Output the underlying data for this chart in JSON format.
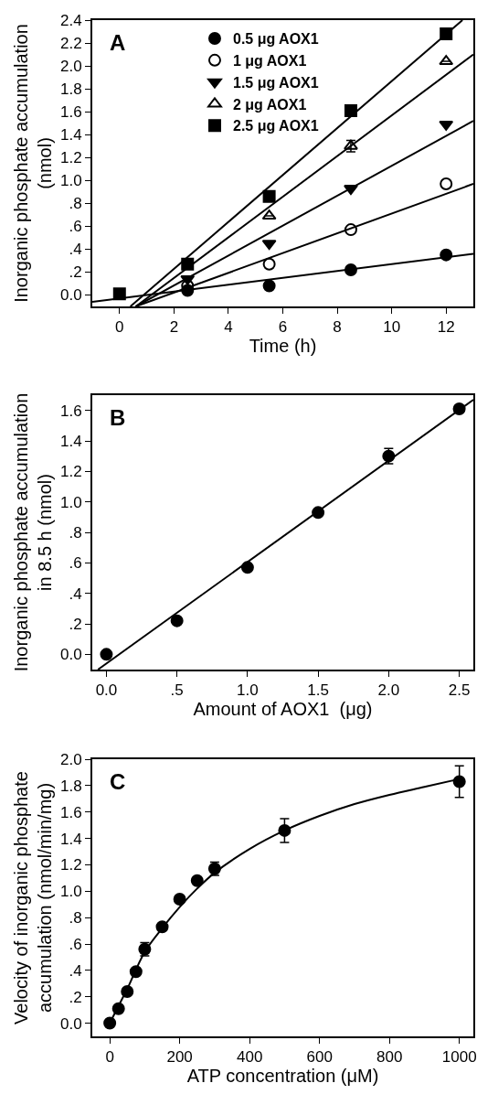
{
  "chart_data": [
    {
      "type": "scatter",
      "xlabel": "Time (h)",
      "ylabel": "Inorganic phosphate accumulation\n(nmol)",
      "annotations": [
        "A"
      ],
      "xlim": [
        -1,
        13
      ],
      "ylim": [
        -0.1,
        2.4
      ],
      "xticks": [
        0,
        2,
        4,
        6,
        8,
        10,
        12
      ],
      "yticks": [
        {
          "value": 0,
          "label": "0.0"
        },
        {
          "value": 0.2,
          "label": ".2"
        },
        {
          "value": 0.4,
          "label": ".4"
        },
        {
          "value": 0.6,
          "label": ".6"
        },
        {
          "value": 0.8,
          "label": ".8"
        },
        {
          "value": 1.0,
          "label": "1.0"
        },
        {
          "value": 1.2,
          "label": "1.2"
        },
        {
          "value": 1.4,
          "label": "1.4"
        },
        {
          "value": 1.6,
          "label": "1.6"
        },
        {
          "value": 1.8,
          "label": "1.8"
        },
        {
          "value": 2.0,
          "label": "2.0"
        },
        {
          "value": 2.2,
          "label": "2.2"
        },
        {
          "value": 2.4,
          "label": "2.4"
        }
      ],
      "legend": "top",
      "x": [
        0,
        2.5,
        5.5,
        8.5,
        12
      ],
      "series": [
        {
          "name": "0.5 μg AOX1",
          "color": "#000000",
          "marker": "circle",
          "values": [
            null,
            0.04,
            0.08,
            0.22,
            0.35
          ]
        },
        {
          "name": "1 μg AOX1",
          "color": "#000000",
          "marker": "circle",
          "values": [
            null,
            0.08,
            0.27,
            0.57,
            0.97
          ]
        },
        {
          "name": "1.5 μg AOX1",
          "color": "#000000",
          "marker": "triangle",
          "values": [
            null,
            0.14,
            0.45,
            0.93,
            1.49
          ]
        },
        {
          "name": "2 μg AOX1",
          "color": "#000000",
          "marker": "triangle",
          "values": [
            null,
            null,
            0.69,
            1.3,
            2.04
          ],
          "errors": [
            null,
            null,
            null,
            0.05,
            null
          ]
        },
        {
          "name": "2.5 μg AOX1",
          "color": "#000000",
          "marker": "square",
          "values": [
            0.01,
            0.27,
            0.86,
            1.61,
            2.28
          ]
        },
        {
          "type": "line",
          "color": "#000000",
          "x": [
            -1,
            13
          ],
          "values": [
            -0.06,
            0.36
          ]
        },
        {
          "type": "line",
          "color": "#000000",
          "x": [
            0.6,
            13
          ],
          "values": [
            -0.1,
            0.97
          ]
        },
        {
          "type": "line",
          "color": "#000000",
          "x": [
            0.6,
            13
          ],
          "values": [
            -0.1,
            1.52
          ]
        },
        {
          "type": "line",
          "color": "#000000",
          "x": [
            0.6,
            13
          ],
          "values": [
            -0.1,
            2.1
          ]
        },
        {
          "type": "line",
          "color": "#000000",
          "x": [
            0.4,
            12.6
          ],
          "values": [
            -0.1,
            2.4
          ]
        }
      ]
    },
    {
      "type": "scatter",
      "xlabel": "Amount of AOX1  (μg)",
      "ylabel": "Inorganic phosphate accumulation\nin 8.5 h (nmol)",
      "annotations": [
        "B"
      ],
      "xlim": [
        -0.1,
        2.6
      ],
      "ylim": [
        -0.1,
        1.7
      ],
      "xticks": [
        {
          "value": 0,
          "label": "0.0"
        },
        {
          "value": 0.5,
          "label": ".5"
        },
        {
          "value": 1.0,
          "label": "1.0"
        },
        {
          "value": 1.5,
          "label": "1.5"
        },
        {
          "value": 2.0,
          "label": "2.0"
        },
        {
          "value": 2.5,
          "label": "2.5"
        }
      ],
      "yticks": [
        {
          "value": 0,
          "label": "0.0"
        },
        {
          "value": 0.2,
          "label": ".2"
        },
        {
          "value": 0.4,
          "label": ".4"
        },
        {
          "value": 0.6,
          "label": ".6"
        },
        {
          "value": 0.8,
          "label": ".8"
        },
        {
          "value": 1.0,
          "label": "1.0"
        },
        {
          "value": 1.2,
          "label": "1.2"
        },
        {
          "value": 1.4,
          "label": "1.4"
        },
        {
          "value": 1.6,
          "label": "1.6"
        }
      ],
      "x": [
        0,
        0.5,
        1.0,
        1.5,
        2.0,
        2.5
      ],
      "series": [
        {
          "color": "#000000",
          "marker": "circle",
          "values": [
            0.0,
            0.22,
            0.57,
            0.93,
            1.3,
            1.61
          ],
          "errors": [
            null,
            null,
            null,
            null,
            0.05,
            null
          ]
        },
        {
          "type": "line",
          "color": "#000000",
          "x": [
            -0.06,
            2.6
          ],
          "values": [
            -0.1,
            1.67
          ]
        }
      ]
    },
    {
      "type": "scatter",
      "xlabel": "ATP concentration (μM)",
      "ylabel": "Velocity of inorganic phosphate\naccumulation (nmol/min/mg)",
      "annotations": [
        "C"
      ],
      "xlim": [
        -50,
        1040
      ],
      "ylim": [
        -0.1,
        2.0
      ],
      "xticks": [
        0,
        200,
        400,
        600,
        800,
        1000
      ],
      "yticks": [
        {
          "value": 0,
          "label": "0.0"
        },
        {
          "value": 0.2,
          "label": ".2"
        },
        {
          "value": 0.4,
          "label": ".4"
        },
        {
          "value": 0.6,
          "label": ".6"
        },
        {
          "value": 0.8,
          "label": ".8"
        },
        {
          "value": 1.0,
          "label": "1.0"
        },
        {
          "value": 1.2,
          "label": "1.2"
        },
        {
          "value": 1.4,
          "label": "1.4"
        },
        {
          "value": 1.6,
          "label": "1.6"
        },
        {
          "value": 1.8,
          "label": "1.8"
        },
        {
          "value": 2.0,
          "label": "2.0"
        }
      ],
      "x": [
        0,
        25,
        50,
        75,
        100,
        150,
        200,
        250,
        300,
        500,
        1000
      ],
      "series": [
        {
          "color": "#000000",
          "marker": "circle",
          "values": [
            0.0,
            0.11,
            0.24,
            0.39,
            0.56,
            0.73,
            0.94,
            1.08,
            1.17,
            1.46,
            1.83
          ],
          "errors": [
            null,
            null,
            null,
            null,
            0.05,
            null,
            null,
            null,
            0.05,
            0.09,
            0.12
          ]
        },
        {
          "type": "line",
          "color": "#000000",
          "x": [
            0,
            25,
            50,
            100,
            150,
            200,
            250,
            300,
            400,
            500,
            600,
            700,
            800,
            900,
            1000
          ],
          "values": [
            0.0,
            0.13,
            0.26,
            0.54,
            0.72,
            0.88,
            1.02,
            1.14,
            1.32,
            1.46,
            1.57,
            1.66,
            1.73,
            1.79,
            1.85
          ]
        }
      ]
    }
  ]
}
